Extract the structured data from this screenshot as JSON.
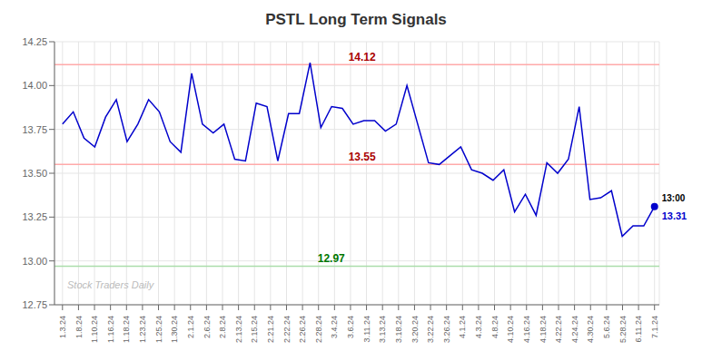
{
  "chart_data": {
    "type": "line",
    "title": "PSTL Long Term Signals",
    "x": [
      0,
      0.6727,
      1.3455,
      2.0182,
      2.6909,
      3.3636,
      4.0364,
      4.7091,
      5.3818,
      6.0545,
      6.7273,
      7.4,
      8.0727,
      8.7455,
      9.4182,
      10.0909,
      10.7636,
      11.4364,
      12.1091,
      12.7818,
      13.4545,
      14.1273,
      14.8,
      15.4727,
      16.1455,
      16.8182,
      17.4909,
      18.1636,
      18.8364,
      19.5091,
      20.1818,
      20.8545,
      21.5273,
      22.2,
      22.8727,
      23.5455,
      24.2182,
      24.8909,
      25.5636,
      26.2364,
      26.9091,
      27.5818,
      28.2545,
      28.9273,
      29.6,
      30.2727,
      30.9455,
      31.6182,
      32.2909,
      32.9636,
      33.6364,
      34.3091,
      34.9818,
      35.6545,
      36.3273,
      37
    ],
    "values": [
      13.78,
      13.85,
      13.7,
      13.65,
      13.82,
      13.92,
      13.68,
      13.78,
      13.92,
      13.85,
      13.68,
      13.62,
      14.07,
      13.78,
      13.73,
      13.78,
      13.58,
      13.57,
      13.9,
      13.88,
      13.57,
      13.84,
      13.84,
      14.13,
      13.76,
      13.88,
      13.87,
      13.78,
      13.8,
      13.8,
      13.74,
      13.78,
      14.0,
      13.78,
      13.56,
      13.55,
      13.6,
      13.65,
      13.52,
      13.5,
      13.46,
      13.52,
      13.28,
      13.38,
      13.26,
      13.56,
      13.5,
      13.58,
      13.88,
      13.35,
      13.36,
      13.4,
      13.14,
      13.2,
      13.2,
      13.31
    ],
    "color": "#0000cc",
    "xlim": [
      -0.5,
      37.3
    ],
    "xticks": [
      {
        "value": 0,
        "label": "1.3.24"
      },
      {
        "value": 1,
        "label": "1.8.24"
      },
      {
        "value": 2,
        "label": "1.10.24"
      },
      {
        "value": 3,
        "label": "1.16.24"
      },
      {
        "value": 4,
        "label": "1.18.24"
      },
      {
        "value": 5,
        "label": "1.23.24"
      },
      {
        "value": 6,
        "label": "1.25.24"
      },
      {
        "value": 7,
        "label": "1.30.24"
      },
      {
        "value": 8,
        "label": "2.1.24"
      },
      {
        "value": 9,
        "label": "2.6.24"
      },
      {
        "value": 10,
        "label": "2.8.24"
      },
      {
        "value": 11,
        "label": "2.13.24"
      },
      {
        "value": 12,
        "label": "2.15.24"
      },
      {
        "value": 13,
        "label": "2.21.24"
      },
      {
        "value": 14,
        "label": "2.22.24"
      },
      {
        "value": 15,
        "label": "2.26.24"
      },
      {
        "value": 16,
        "label": "2.28.24"
      },
      {
        "value": 17,
        "label": "3.4.24"
      },
      {
        "value": 18,
        "label": "3.6.24"
      },
      {
        "value": 19,
        "label": "3.11.24"
      },
      {
        "value": 20,
        "label": "3.13.24"
      },
      {
        "value": 21,
        "label": "3.18.24"
      },
      {
        "value": 22,
        "label": "3.20.24"
      },
      {
        "value": 23,
        "label": "3.22.24"
      },
      {
        "value": 24,
        "label": "3.26.24"
      },
      {
        "value": 25,
        "label": "4.1.24"
      },
      {
        "value": 26,
        "label": "4.3.24"
      },
      {
        "value": 27,
        "label": "4.8.24"
      },
      {
        "value": 28,
        "label": "4.10.24"
      },
      {
        "value": 29,
        "label": "4.16.24"
      },
      {
        "value": 30,
        "label": "4.18.24"
      },
      {
        "value": 31,
        "label": "4.22.24"
      },
      {
        "value": 32,
        "label": "4.24.24"
      },
      {
        "value": 33,
        "label": "4.30.24"
      },
      {
        "value": 34,
        "label": "5.6.24"
      },
      {
        "value": 35,
        "label": "5.28.24"
      },
      {
        "value": 36,
        "label": "6.11.24"
      },
      {
        "value": 37,
        "label": "7.1.24"
      }
    ],
    "ylim": [
      12.75,
      14.25
    ],
    "yticks": [
      12.75,
      {
        "value": 13,
        "label": "13.00"
      },
      13.25,
      {
        "value": 13.5,
        "label": "13.50"
      },
      13.75,
      {
        "value": 14,
        "label": "14.00"
      },
      14.25
    ],
    "grid": true,
    "hlines": [
      {
        "value": 14.12,
        "label": "14.12",
        "color": "#ffaaaa",
        "label_color": "#aa0000"
      },
      {
        "value": 13.55,
        "label": "13.55",
        "color": "#ffaaaa",
        "label_color": "#aa0000"
      },
      {
        "value": 12.97,
        "label": "12.97",
        "color": "#aaddaa",
        "label_color": "#007700"
      }
    ],
    "last_point": {
      "x": 37,
      "y": 13.31,
      "marker": "o",
      "label": "13:00",
      "label_color": "#000000",
      "value_label": "13.31",
      "value_color": "#0000cc"
    },
    "watermark": "Stock Traders Daily",
    "watermark_color": "#bbbbbb"
  }
}
